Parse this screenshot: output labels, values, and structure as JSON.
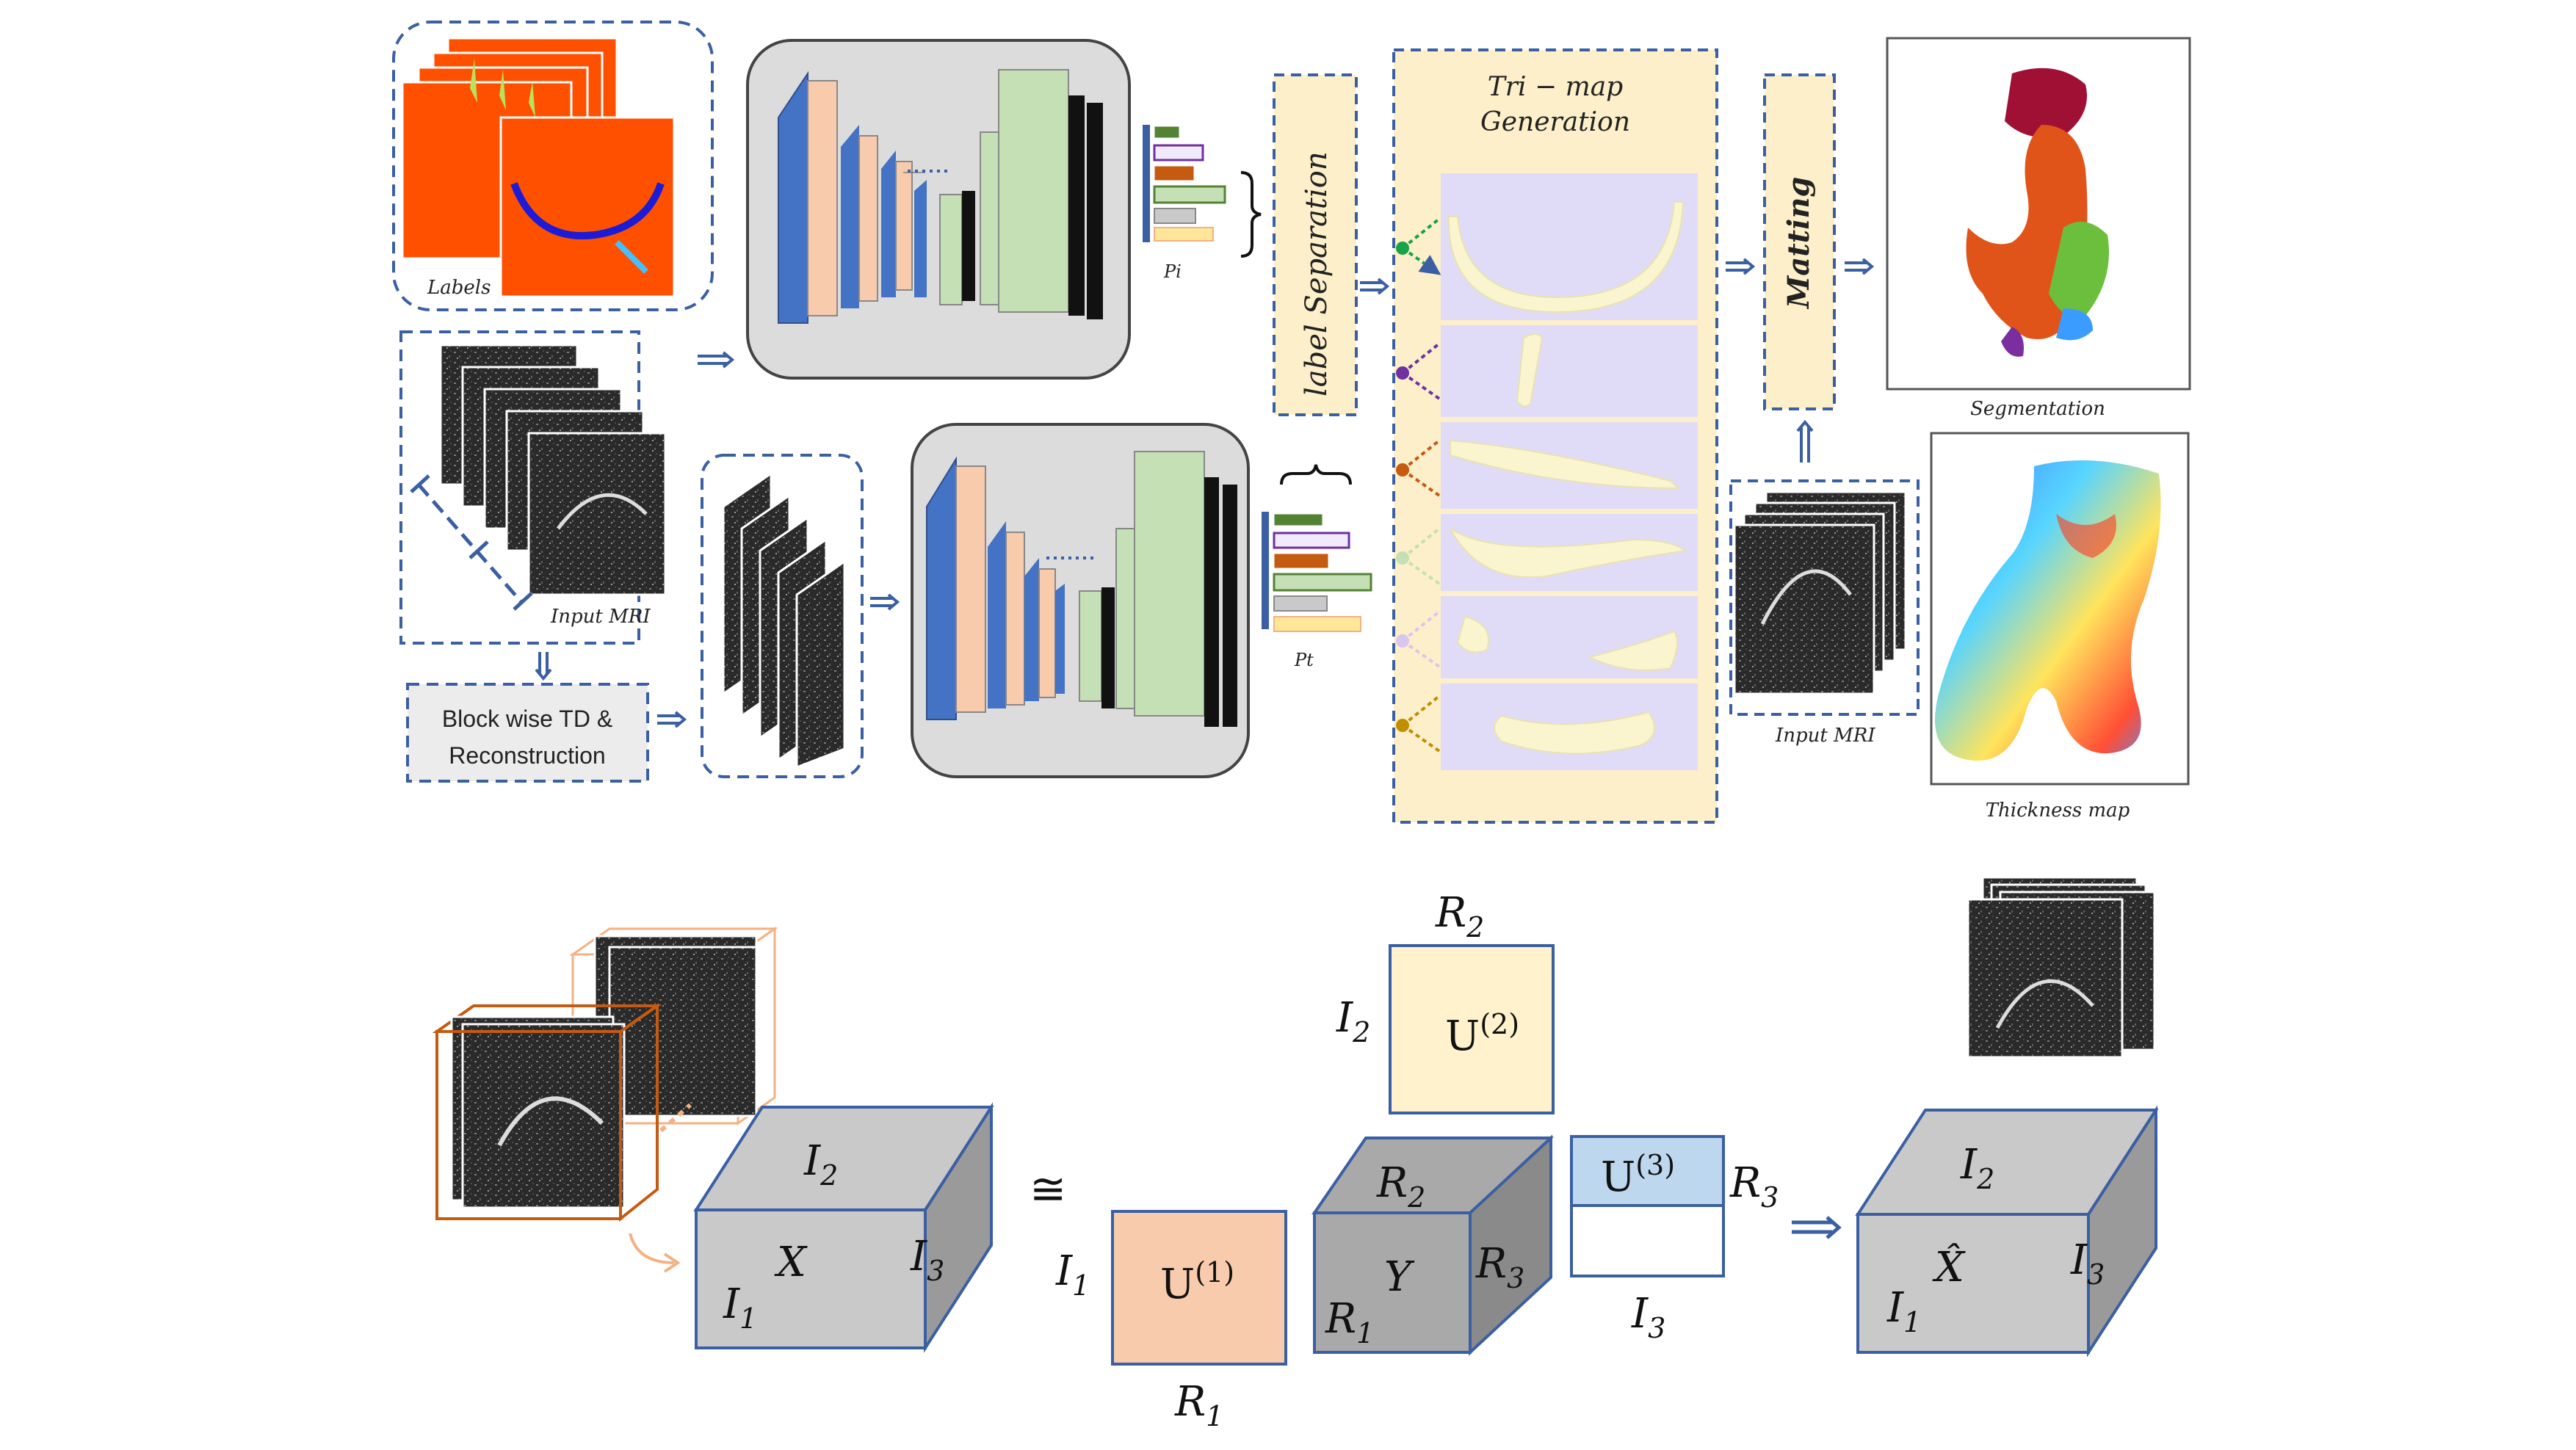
{
  "labels": {
    "labels_box": "Labels",
    "input_mri": "Input MRI",
    "input_mri_right": "Input MRI",
    "block_line1": "Block wise TD &",
    "block_line2": "Reconstruction",
    "pi": "Pi",
    "pt": "Pt",
    "label_separation": "label Separation",
    "trimap_line1": "Tri − map",
    "trimap_line2": "Generation",
    "matting": "Matting",
    "segmentation": "Segmentation",
    "thickness_map": "Thickness map"
  },
  "tucker": {
    "x_tensor": {
      "top": "I",
      "top_sub": "2",
      "front": "X",
      "left": "I",
      "left_sub": "1",
      "side": "I",
      "side_sub": "3"
    },
    "approx": "≅",
    "u1": {
      "name": "U",
      "sup": "(1)",
      "row": "I",
      "row_sub": "1",
      "col": "R",
      "col_sub": "1"
    },
    "u2": {
      "name": "U",
      "sup": "(2)",
      "row": "I",
      "row_sub": "2",
      "col": "R",
      "col_sub": "2"
    },
    "core": {
      "top": "R",
      "top_sub": "2",
      "front": "Y",
      "left": "R",
      "left_sub": "1",
      "side": "R",
      "side_sub": "3"
    },
    "u3": {
      "name": "U",
      "sup": "(3)",
      "row": "R",
      "row_sub": "3",
      "col": "I",
      "col_sub": "3"
    },
    "xhat_tensor": {
      "top": "I",
      "top_sub": "2",
      "front": "X̂",
      "left": "I",
      "left_sub": "1",
      "side": "I",
      "side_sub": "3"
    }
  },
  "colors": {
    "dash_blue": "#3a5fa3",
    "label_orange": "#ff5000",
    "trimap_bg": "#fdefc9",
    "trimap_panel": "#e0dcf7",
    "cartilage": "#fbf5cf",
    "unet_blue": "#4472c4",
    "unet_peach": "#f8cbad",
    "unet_green": "#c5e0b4",
    "u1_fill": "#f8cbad",
    "u2_fill": "#fff2cc",
    "u3_fill": "#bdd7ee",
    "cube_front": "#c9c9c9",
    "cube_side": "#9a9a9a"
  }
}
